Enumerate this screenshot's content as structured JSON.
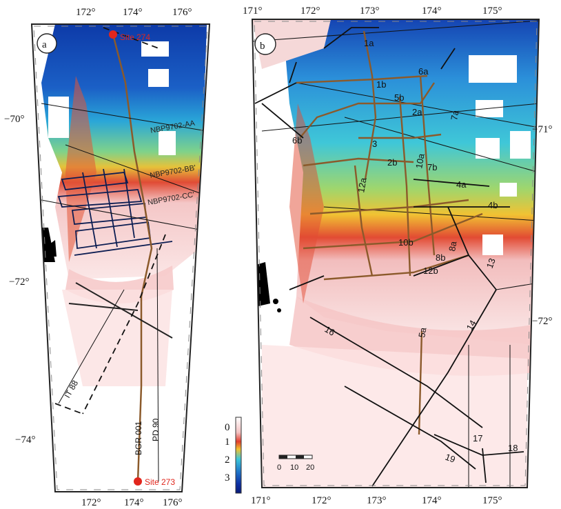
{
  "panel_a": {
    "letter": "a",
    "lon_ticks_top": [
      "172°",
      "174°",
      "176°"
    ],
    "lon_ticks_bottom": [
      "172°",
      "174°",
      "176°"
    ],
    "lat_ticks_left": [
      "−70°",
      "−72°",
      "−74°"
    ],
    "sites": {
      "north": "Site 274",
      "south": "Site 273"
    },
    "profiles": {
      "aa": "NBP9702-AA",
      "bb": "NBP9702-BB'",
      "cc": "NBP9702-CC'"
    },
    "lines": {
      "it88": "IT 88",
      "bgr": "BGR 001",
      "pd": "PD 90"
    }
  },
  "panel_b": {
    "letter": "b",
    "lon_ticks_top": [
      "171°",
      "172°",
      "173°",
      "174°",
      "175°"
    ],
    "lon_ticks_bottom": [
      "171°",
      "172°",
      "173°",
      "174°",
      "175°"
    ],
    "lat_ticks_right": [
      "−71°",
      "−72°"
    ],
    "track_labels": [
      "1a",
      "1b",
      "2a",
      "2b",
      "3",
      "4a",
      "4b",
      "5a",
      "5b",
      "6a",
      "6b",
      "7a",
      "7b",
      "8a",
      "8b",
      "10a",
      "10b",
      "12a",
      "12b",
      "13",
      "14",
      "16",
      "17",
      "18",
      "19"
    ]
  },
  "depth_scale": {
    "ticks": [
      "0",
      "1",
      "2",
      "3"
    ],
    "colors": [
      "#ffffff",
      "#f3c2c2",
      "#e23d2d",
      "#f2c12e",
      "#3cc7d9",
      "#1f74c8",
      "#0e2fa3",
      "#081b78"
    ]
  },
  "distance_scale": {
    "ticks": [
      "0",
      "10",
      "20"
    ]
  }
}
